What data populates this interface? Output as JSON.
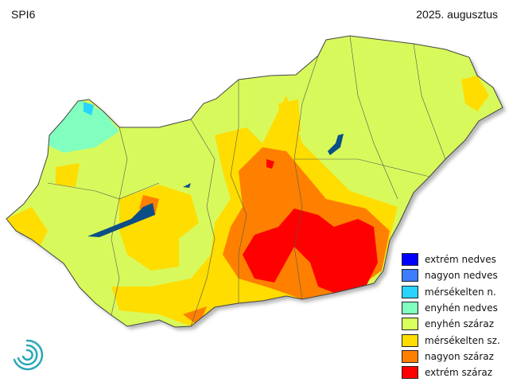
{
  "header": {
    "index": "SPI6",
    "period": "2025. augusztus"
  },
  "legend": {
    "items": [
      {
        "label": "extrém nedves",
        "color": "#0000ff"
      },
      {
        "label": "nagyon nedves",
        "color": "#3c7cff"
      },
      {
        "label": "mérsékelten n.",
        "color": "#28d4ff"
      },
      {
        "label": "enyhén nedves",
        "color": "#80ffbe"
      },
      {
        "label": "enyhén száraz",
        "color": "#d8ff5c"
      },
      {
        "label": "mérsékelten sz.",
        "color": "#ffdd00"
      },
      {
        "label": "nagyon száraz",
        "color": "#ff8000"
      },
      {
        "label": "extrém száraz",
        "color": "#ff0000"
      }
    ]
  },
  "map": {
    "lake_color": "#0b4f86",
    "border_color": "#555555"
  }
}
